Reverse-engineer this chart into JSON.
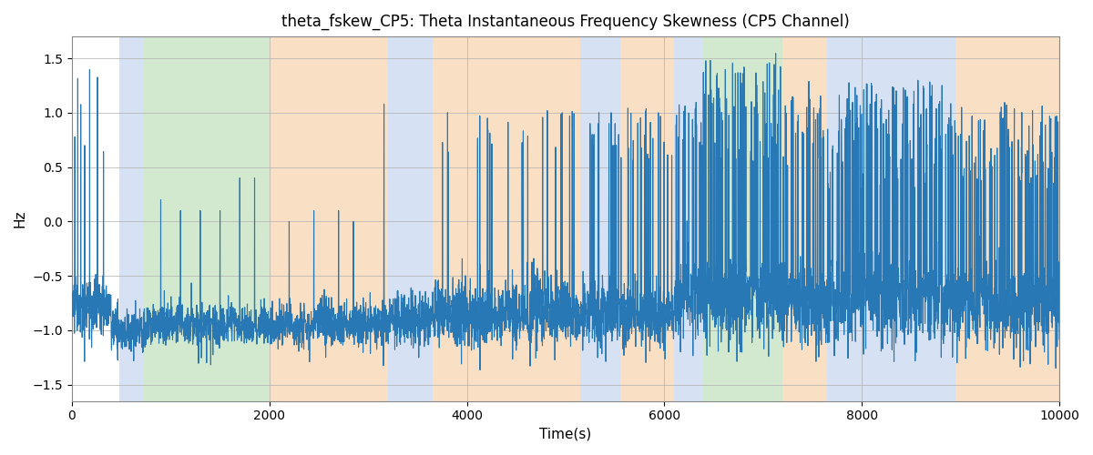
{
  "title": "theta_fskew_CP5: Theta Instantaneous Frequency Skewness (CP5 Channel)",
  "xlabel": "Time(s)",
  "ylabel": "Hz",
  "xlim": [
    0,
    10000
  ],
  "ylim": [
    -1.65,
    1.7
  ],
  "yticks": [
    -1.5,
    -1.0,
    -0.5,
    0.0,
    0.5,
    1.0,
    1.5
  ],
  "xticks": [
    0,
    2000,
    4000,
    6000,
    8000,
    10000
  ],
  "line_color": "#2878b5",
  "line_width": 0.8,
  "background_color": "#ffffff",
  "grid_color": "#b0b0b0",
  "regions": [
    {
      "start": 480,
      "end": 730,
      "color": "#aec6e8",
      "alpha": 0.5
    },
    {
      "start": 730,
      "end": 2000,
      "color": "#90c987",
      "alpha": 0.4
    },
    {
      "start": 2000,
      "end": 3200,
      "color": "#f5c08a",
      "alpha": 0.5
    },
    {
      "start": 3200,
      "end": 3650,
      "color": "#aec6e8",
      "alpha": 0.5
    },
    {
      "start": 3650,
      "end": 5150,
      "color": "#f5c08a",
      "alpha": 0.5
    },
    {
      "start": 5150,
      "end": 5550,
      "color": "#aec6e8",
      "alpha": 0.5
    },
    {
      "start": 5550,
      "end": 6100,
      "color": "#f5c08a",
      "alpha": 0.5
    },
    {
      "start": 6100,
      "end": 6380,
      "color": "#aec6e8",
      "alpha": 0.5
    },
    {
      "start": 6380,
      "end": 7200,
      "color": "#90c987",
      "alpha": 0.4
    },
    {
      "start": 7200,
      "end": 7650,
      "color": "#f5c08a",
      "alpha": 0.5
    },
    {
      "start": 7650,
      "end": 8950,
      "color": "#aec6e8",
      "alpha": 0.5
    },
    {
      "start": 8950,
      "end": 10200,
      "color": "#f5c08a",
      "alpha": 0.5
    }
  ],
  "seed": 12345,
  "n_points": 5000
}
